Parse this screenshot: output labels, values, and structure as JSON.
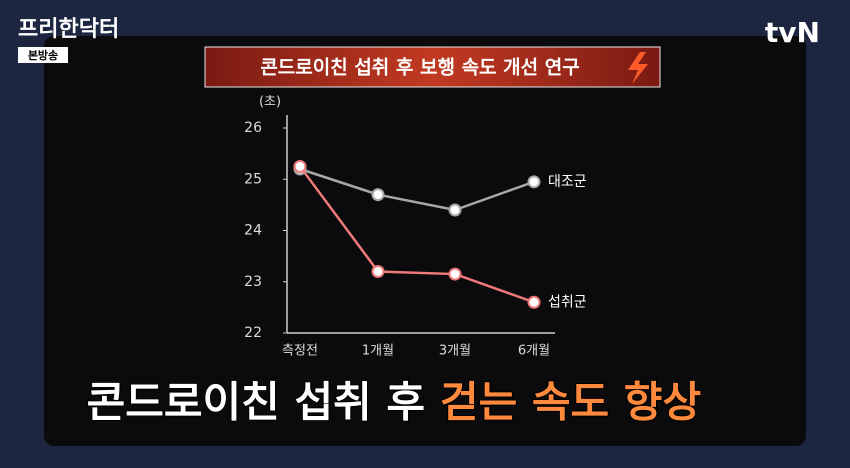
{
  "logo": {
    "title": "프리한닥터",
    "badge": "본방송"
  },
  "channel": "tvN",
  "chart_data": {
    "type": "line",
    "title": "콘드로이친 섭취 후 보행 속도 개선 연구",
    "y_label": "(초)",
    "categories": [
      "측정전",
      "1개월",
      "3개월",
      "6개월"
    ],
    "series": [
      {
        "name": "대조군",
        "color": "#a8a8a8",
        "values": [
          25.2,
          24.7,
          24.4,
          24.95
        ]
      },
      {
        "name": "섭취군",
        "color": "#f07a7a",
        "values": [
          25.25,
          23.2,
          23.15,
          22.6
        ]
      }
    ],
    "ylim": [
      22,
      26
    ],
    "yticks": [
      22,
      23,
      24,
      25,
      26
    ]
  },
  "caption": {
    "prefix": "콘드로이친 섭취 후",
    "highlight": "걷는 속도 향상"
  }
}
